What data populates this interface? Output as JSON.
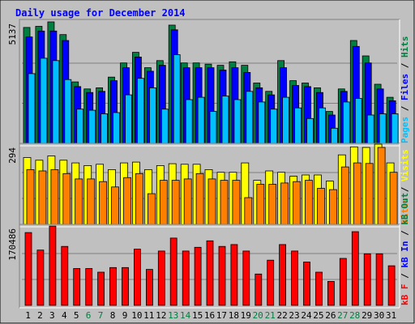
{
  "chart_data": [
    {
      "type": "bar",
      "panel": "hits-files-pages",
      "title": "Daily usage for December 2014",
      "max_label": "5137",
      "ylim": [
        0,
        5137
      ],
      "categories": [
        "1",
        "2",
        "3",
        "4",
        "5",
        "6",
        "7",
        "8",
        "9",
        "10",
        "11",
        "12",
        "13",
        "14",
        "15",
        "16",
        "17",
        "18",
        "19",
        "20",
        "21",
        "22",
        "23",
        "24",
        "25",
        "26",
        "27",
        "28",
        "29",
        "30",
        "31"
      ],
      "weekend_days": [
        "6",
        "7",
        "13",
        "14",
        "20",
        "21",
        "27",
        "28"
      ],
      "series": [
        {
          "name": "Hits",
          "color": "#008040",
          "values": [
            4900,
            4950,
            5137,
            4600,
            2600,
            2300,
            2350,
            2800,
            3400,
            3850,
            3200,
            3500,
            5000,
            3400,
            3400,
            3350,
            3300,
            3450,
            3300,
            2550,
            2200,
            3500,
            2650,
            2550,
            2350,
            1350,
            2300,
            4350,
            3700,
            2500,
            1950
          ]
        },
        {
          "name": "Files",
          "color": "#0000ff",
          "values": [
            4500,
            4750,
            4750,
            4350,
            2400,
            2150,
            2200,
            2650,
            3200,
            3650,
            3050,
            3300,
            4800,
            3200,
            3200,
            3200,
            3100,
            3200,
            3000,
            2350,
            2050,
            3200,
            2450,
            2400,
            2150,
            1200,
            2200,
            4100,
            3400,
            2300,
            1800
          ]
        },
        {
          "name": "Pages",
          "color": "#00c0ff",
          "values": [
            2950,
            3600,
            3500,
            2700,
            1450,
            1400,
            1250,
            1300,
            2050,
            2750,
            2350,
            1450,
            3750,
            1850,
            1950,
            1350,
            2000,
            1850,
            2200,
            1750,
            1450,
            1950,
            1500,
            1050,
            1500,
            640,
            1750,
            1900,
            1200,
            1250,
            1250
          ]
        }
      ],
      "right_labels": [
        "Pages",
        "Files",
        "Hits"
      ]
    },
    {
      "type": "bar",
      "panel": "visits-sites",
      "max_label": "294",
      "ylim": [
        0,
        294
      ],
      "categories": [
        "1",
        "2",
        "3",
        "4",
        "5",
        "6",
        "7",
        "8",
        "9",
        "10",
        "11",
        "12",
        "13",
        "14",
        "15",
        "16",
        "17",
        "18",
        "19",
        "20",
        "21",
        "22",
        "23",
        "24",
        "25",
        "26",
        "27",
        "28",
        "29",
        "30",
        "31"
      ],
      "series": [
        {
          "name": "Visits",
          "color": "#ffff00",
          "values": [
            250,
            240,
            256,
            240,
            230,
            220,
            225,
            205,
            230,
            233,
            205,
            220,
            227,
            225,
            225,
            205,
            195,
            195,
            230,
            165,
            200,
            195,
            180,
            185,
            185,
            162,
            260,
            290,
            288,
            300,
            230
          ]
        },
        {
          "name": "Sites",
          "color": "#ff8000",
          "values": [
            205,
            200,
            205,
            190,
            170,
            170,
            160,
            140,
            175,
            190,
            115,
            165,
            165,
            170,
            190,
            170,
            165,
            165,
            100,
            150,
            150,
            155,
            160,
            165,
            135,
            130,
            215,
            230,
            228,
            288,
            195
          ]
        }
      ],
      "right_labels": [
        "Sites",
        "Visits"
      ]
    },
    {
      "type": "bar",
      "panel": "kbytes",
      "max_label": "170486",
      "ylim": [
        0,
        170486
      ],
      "categories": [
        "1",
        "2",
        "3",
        "4",
        "5",
        "6",
        "7",
        "8",
        "9",
        "10",
        "11",
        "12",
        "13",
        "14",
        "15",
        "16",
        "17",
        "18",
        "19",
        "20",
        "21",
        "22",
        "23",
        "24",
        "25",
        "26",
        "27",
        "28",
        "29",
        "30",
        "31"
      ],
      "series": [
        {
          "name": "KBytes",
          "color": "#ff0000",
          "values": [
            158000,
            120000,
            172000,
            128000,
            80000,
            80000,
            72000,
            82000,
            82000,
            122000,
            78000,
            118000,
            146000,
            118000,
            126000,
            140000,
            128000,
            132000,
            118000,
            68000,
            98000,
            132000,
            118000,
            94000,
            72000,
            52000,
            102000,
            160000,
            112000,
            112000,
            86000
          ]
        }
      ],
      "right_labels": [
        "kB F",
        "kB In",
        "kB Out"
      ]
    }
  ]
}
